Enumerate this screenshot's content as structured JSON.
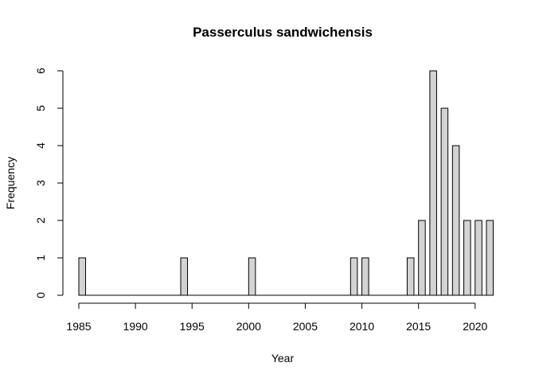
{
  "chart_data": {
    "type": "bar",
    "title": "Passerculus sandwichensis",
    "xlabel": "Year",
    "ylabel": "Frequency",
    "xlim": [
      1985,
      2021
    ],
    "ylim": [
      0,
      6
    ],
    "x_ticks": [
      1985,
      1990,
      1995,
      2000,
      2005,
      2010,
      2015,
      2020
    ],
    "y_ticks": [
      0,
      1,
      2,
      3,
      4,
      5,
      6
    ],
    "bin_width": 1,
    "bins": [
      {
        "start": 1985,
        "value": 1
      },
      {
        "start": 1986,
        "value": 0
      },
      {
        "start": 1987,
        "value": 0
      },
      {
        "start": 1988,
        "value": 0
      },
      {
        "start": 1989,
        "value": 0
      },
      {
        "start": 1990,
        "value": 0
      },
      {
        "start": 1991,
        "value": 0
      },
      {
        "start": 1992,
        "value": 0
      },
      {
        "start": 1993,
        "value": 0
      },
      {
        "start": 1994,
        "value": 1
      },
      {
        "start": 1995,
        "value": 0
      },
      {
        "start": 1996,
        "value": 0
      },
      {
        "start": 1997,
        "value": 0
      },
      {
        "start": 1998,
        "value": 0
      },
      {
        "start": 1999,
        "value": 0
      },
      {
        "start": 2000,
        "value": 1
      },
      {
        "start": 2001,
        "value": 0
      },
      {
        "start": 2002,
        "value": 0
      },
      {
        "start": 2003,
        "value": 0
      },
      {
        "start": 2004,
        "value": 0
      },
      {
        "start": 2005,
        "value": 0
      },
      {
        "start": 2006,
        "value": 0
      },
      {
        "start": 2007,
        "value": 0
      },
      {
        "start": 2008,
        "value": 0
      },
      {
        "start": 2009,
        "value": 1
      },
      {
        "start": 2010,
        "value": 1
      },
      {
        "start": 2011,
        "value": 0
      },
      {
        "start": 2012,
        "value": 0
      },
      {
        "start": 2013,
        "value": 0
      },
      {
        "start": 2014,
        "value": 1
      },
      {
        "start": 2015,
        "value": 2
      },
      {
        "start": 2016,
        "value": 6
      },
      {
        "start": 2017,
        "value": 5
      },
      {
        "start": 2018,
        "value": 4
      },
      {
        "start": 2019,
        "value": 2
      },
      {
        "start": 2020,
        "value": 2
      },
      {
        "start": 2021,
        "value": 2
      }
    ],
    "colors": {
      "bar_fill": "#d3d3d3",
      "bar_stroke": "#000000"
    },
    "grid": false,
    "legend": "none"
  }
}
